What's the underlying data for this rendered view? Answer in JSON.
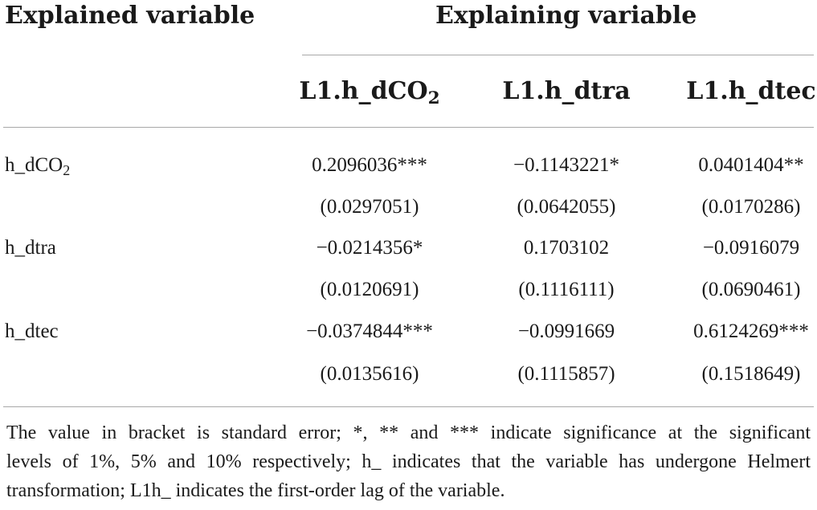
{
  "header": {
    "explained_label": "Explained variable",
    "explaining_label": "Explaining variable"
  },
  "columns": [
    {
      "base": "L1.h_dCO",
      "sub": "2"
    },
    {
      "base": "L1.h_dtra",
      "sub": ""
    },
    {
      "base": "L1.h_dtec",
      "sub": ""
    }
  ],
  "rows": [
    {
      "label": {
        "base": "h_dCO",
        "sub": "2"
      },
      "coef": [
        "0.2096036***",
        "−0.1143221*",
        "0.0401404**"
      ],
      "se": [
        "(0.0297051)",
        "(0.0642055)",
        "(0.0170286)"
      ]
    },
    {
      "label": {
        "base": "h_dtra",
        "sub": ""
      },
      "coef": [
        "−0.0214356*",
        "0.1703102",
        "−0.0916079"
      ],
      "se": [
        "(0.0120691)",
        "(0.1116111)",
        "(0.0690461)"
      ]
    },
    {
      "label": {
        "base": "h_dtec",
        "sub": ""
      },
      "coef": [
        "−0.0374844***",
        "−0.0991669",
        "0.6124269***"
      ],
      "se": [
        "(0.0135616)",
        "(0.1115857)",
        "(0.1518649)"
      ]
    }
  ],
  "footnote": {
    "line1": "The value in bracket is standard error; *, ** and *** indicate significance at the significant",
    "line2": "levels of 1%, 5% and 10% respectively; h_ indicates that the variable has undergone Helmert",
    "line3": "transformation; L1h_ indicates the first-order lag of the variable."
  }
}
